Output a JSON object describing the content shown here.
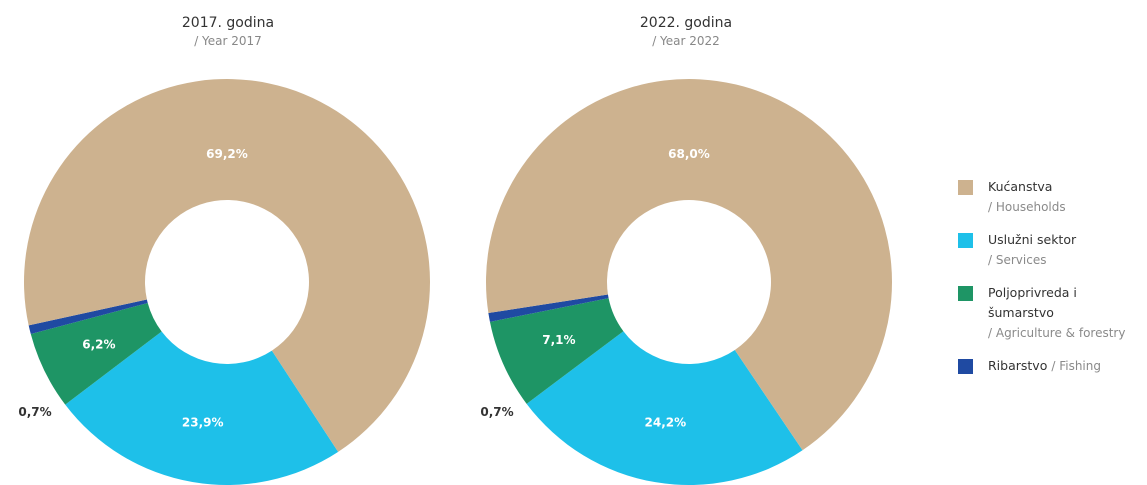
{
  "colors": {
    "households": "#cdb28f",
    "services": "#1ec0e9",
    "agriculture": "#1e9565",
    "fishing": "#1f4aa2"
  },
  "chart_data": [
    {
      "type": "pie",
      "title": "2017. godina",
      "subtitle": "/ Year 2017",
      "categories": [
        "Kućanstva",
        "Uslužni sektor",
        "Poljoprivreda i šumarstvo",
        "Ribarstvo"
      ],
      "values": [
        69.2,
        23.9,
        6.2,
        0.7
      ],
      "value_labels": [
        "69,2%",
        "23,9%",
        "6,2%",
        "0,7%"
      ],
      "legend": "right",
      "donut": true
    },
    {
      "type": "pie",
      "title": "2022. godina",
      "subtitle": "/ Year 2022",
      "categories": [
        "Kućanstva",
        "Uslužni sektor",
        "Poljoprivreda i šumarstvo",
        "Ribarstvo"
      ],
      "values": [
        68.0,
        24.2,
        7.1,
        0.7
      ],
      "value_labels": [
        "68,0%",
        "24,2%",
        "7,1%",
        "0,7%"
      ],
      "legend": "right",
      "donut": true
    }
  ],
  "legend": {
    "households": {
      "hr": "Kućanstva",
      "en": "/ Households"
    },
    "services": {
      "hr": "Uslužni sektor",
      "en": "/ Services"
    },
    "agriculture": {
      "hr_line1": "Poljoprivreda i",
      "hr_line2": "šumarstvo",
      "en": "/ Agriculture & forestry"
    },
    "fishing": {
      "hr": "Ribarstvo",
      "en": "/ Fishing"
    }
  }
}
